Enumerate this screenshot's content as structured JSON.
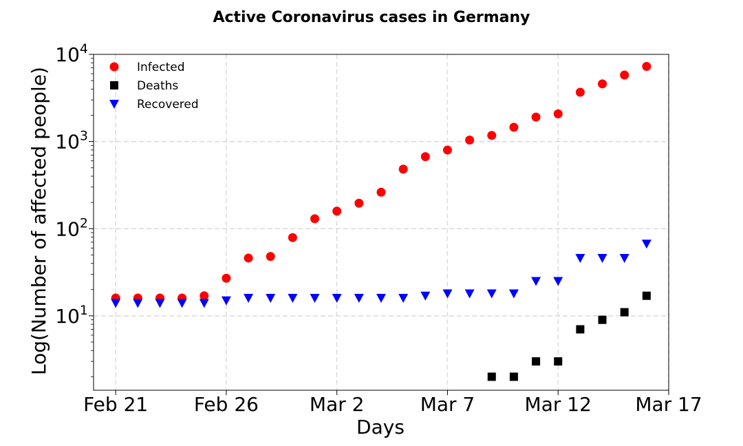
{
  "chart_data": {
    "type": "scatter",
    "title": "Active Coronavirus cases in Germany",
    "xlabel": "Days",
    "ylabel": "Log(Number of affected people)",
    "yscale": "log",
    "xlim": [
      "2020-02-20",
      "2020-03-17"
    ],
    "ylim": [
      1.4,
      10000
    ],
    "grid": true,
    "legend_position": "top-left",
    "x_ticks": [
      "2020-02-21",
      "2020-02-26",
      "2020-03-02",
      "2020-03-07",
      "2020-03-12",
      "2020-03-17"
    ],
    "x_tick_labels": [
      "Feb 21",
      "Feb 26",
      "Mar 2",
      "Mar 7",
      "Mar 12",
      "Mar 17"
    ],
    "y_ticks": [
      10,
      100,
      1000,
      10000
    ],
    "y_tick_labels": [
      {
        "base": "10",
        "exp": "1"
      },
      {
        "base": "10",
        "exp": "2"
      },
      {
        "base": "10",
        "exp": "3"
      },
      {
        "base": "10",
        "exp": "4"
      }
    ],
    "series": [
      {
        "name": "Infected",
        "color": "#ff0000",
        "marker": "circle",
        "points": [
          {
            "x": "2020-02-21",
            "y": 16
          },
          {
            "x": "2020-02-22",
            "y": 16
          },
          {
            "x": "2020-02-23",
            "y": 16
          },
          {
            "x": "2020-02-24",
            "y": 16
          },
          {
            "x": "2020-02-25",
            "y": 17
          },
          {
            "x": "2020-02-26",
            "y": 27
          },
          {
            "x": "2020-02-27",
            "y": 46
          },
          {
            "x": "2020-02-28",
            "y": 48
          },
          {
            "x": "2020-02-29",
            "y": 79
          },
          {
            "x": "2020-03-01",
            "y": 130
          },
          {
            "x": "2020-03-02",
            "y": 159
          },
          {
            "x": "2020-03-03",
            "y": 196
          },
          {
            "x": "2020-03-04",
            "y": 262
          },
          {
            "x": "2020-03-05",
            "y": 482
          },
          {
            "x": "2020-03-06",
            "y": 670
          },
          {
            "x": "2020-03-07",
            "y": 799
          },
          {
            "x": "2020-03-08",
            "y": 1040
          },
          {
            "x": "2020-03-09",
            "y": 1176
          },
          {
            "x": "2020-03-10",
            "y": 1457
          },
          {
            "x": "2020-03-11",
            "y": 1908
          },
          {
            "x": "2020-03-12",
            "y": 2078
          },
          {
            "x": "2020-03-13",
            "y": 3675
          },
          {
            "x": "2020-03-14",
            "y": 4585
          },
          {
            "x": "2020-03-15",
            "y": 5795
          },
          {
            "x": "2020-03-16",
            "y": 7272
          }
        ]
      },
      {
        "name": "Deaths",
        "color": "#000000",
        "marker": "square",
        "points": [
          {
            "x": "2020-03-09",
            "y": 2
          },
          {
            "x": "2020-03-10",
            "y": 2
          },
          {
            "x": "2020-03-11",
            "y": 3
          },
          {
            "x": "2020-03-12",
            "y": 3
          },
          {
            "x": "2020-03-13",
            "y": 7
          },
          {
            "x": "2020-03-14",
            "y": 9
          },
          {
            "x": "2020-03-15",
            "y": 11
          },
          {
            "x": "2020-03-16",
            "y": 17
          }
        ]
      },
      {
        "name": "Recovered",
        "color": "#0000ff",
        "marker": "triangle-down",
        "points": [
          {
            "x": "2020-02-21",
            "y": 14
          },
          {
            "x": "2020-02-22",
            "y": 14
          },
          {
            "x": "2020-02-23",
            "y": 14
          },
          {
            "x": "2020-02-24",
            "y": 14
          },
          {
            "x": "2020-02-25",
            "y": 14
          },
          {
            "x": "2020-02-26",
            "y": 15
          },
          {
            "x": "2020-02-27",
            "y": 16
          },
          {
            "x": "2020-02-28",
            "y": 16
          },
          {
            "x": "2020-02-29",
            "y": 16
          },
          {
            "x": "2020-03-01",
            "y": 16
          },
          {
            "x": "2020-03-02",
            "y": 16
          },
          {
            "x": "2020-03-03",
            "y": 16
          },
          {
            "x": "2020-03-04",
            "y": 16
          },
          {
            "x": "2020-03-05",
            "y": 16
          },
          {
            "x": "2020-03-06",
            "y": 17
          },
          {
            "x": "2020-03-07",
            "y": 18
          },
          {
            "x": "2020-03-08",
            "y": 18
          },
          {
            "x": "2020-03-09",
            "y": 18
          },
          {
            "x": "2020-03-10",
            "y": 18
          },
          {
            "x": "2020-03-11",
            "y": 25
          },
          {
            "x": "2020-03-12",
            "y": 25
          },
          {
            "x": "2020-03-13",
            "y": 46
          },
          {
            "x": "2020-03-14",
            "y": 46
          },
          {
            "x": "2020-03-15",
            "y": 46
          },
          {
            "x": "2020-03-16",
            "y": 67
          }
        ]
      }
    ]
  }
}
